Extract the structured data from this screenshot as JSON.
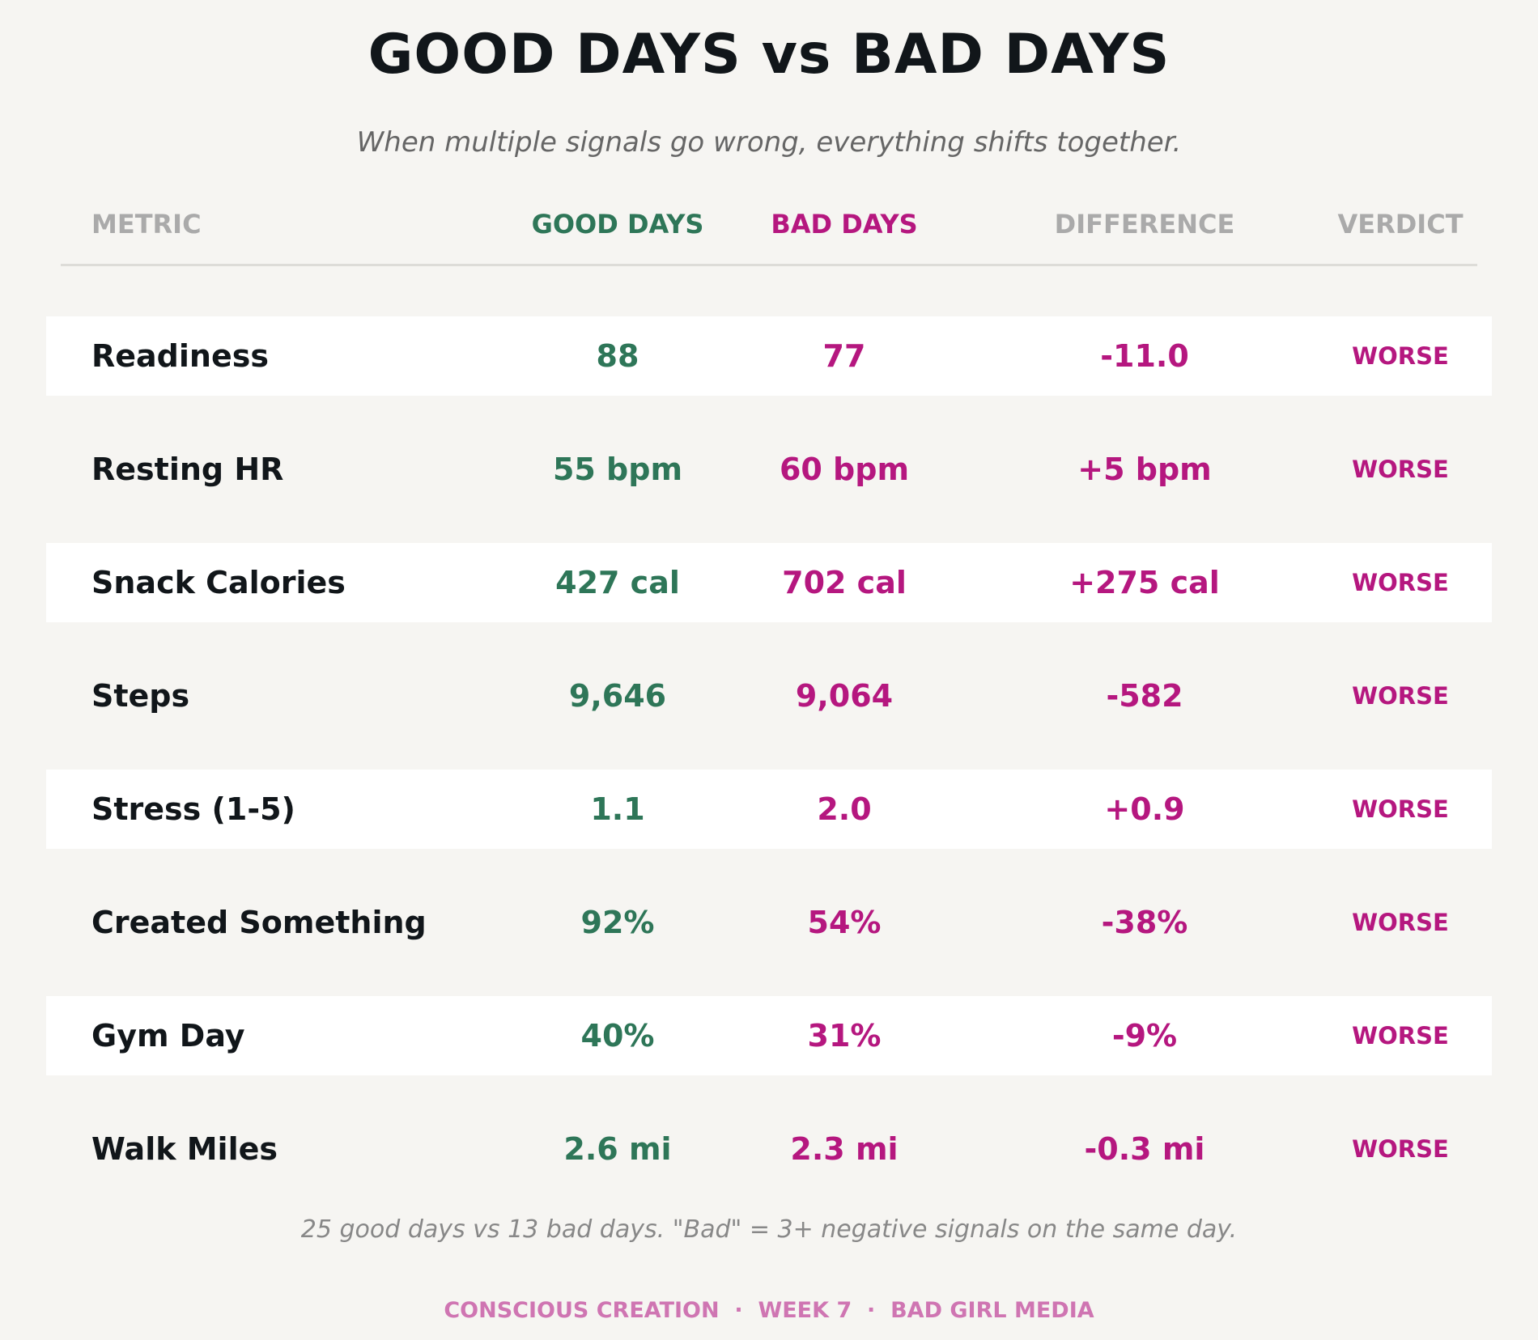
{
  "chart_data": {
    "type": "table",
    "title": "GOOD DAYS vs BAD DAYS",
    "subtitle": "When multiple signals go wrong, everything shifts together.",
    "columns": [
      "METRIC",
      "GOOD DAYS",
      "BAD DAYS",
      "DIFFERENCE",
      "VERDICT"
    ],
    "rows": [
      {
        "metric": "Readiness",
        "good": "88",
        "bad": "77",
        "diff": "-11.0",
        "verdict": "WORSE"
      },
      {
        "metric": "Resting HR",
        "good": "55 bpm",
        "bad": "60 bpm",
        "diff": "+5 bpm",
        "verdict": "WORSE"
      },
      {
        "metric": "Snack Calories",
        "good": "427 cal",
        "bad": "702 cal",
        "diff": "+275 cal",
        "verdict": "WORSE"
      },
      {
        "metric": "Steps",
        "good": "9,646",
        "bad": "9,064",
        "diff": "-582",
        "verdict": "WORSE"
      },
      {
        "metric": "Stress (1-5)",
        "good": "1.1",
        "bad": "2.0",
        "diff": "+0.9",
        "verdict": "WORSE"
      },
      {
        "metric": "Created Something",
        "good": "92%",
        "bad": "54%",
        "diff": "-38%",
        "verdict": "WORSE"
      },
      {
        "metric": "Gym Day",
        "good": "40%",
        "bad": "31%",
        "diff": "-9%",
        "verdict": "WORSE"
      },
      {
        "metric": "Walk Miles",
        "good": "2.6 mi",
        "bad": "2.3 mi",
        "diff": "-0.3 mi",
        "verdict": "WORSE"
      }
    ],
    "footnote": "25 good days vs 13 bad days. \"Bad\" = 3+ negative signals on the same day.",
    "brand": "CONSCIOUS CREATION  ·  WEEK 7  ·  BAD GIRL MEDIA"
  },
  "colors": {
    "background": "#f6f5f2",
    "good": "#2e7658",
    "bad": "#b5177f",
    "header": "#aaaaaa",
    "brand": "#cf75b2"
  }
}
